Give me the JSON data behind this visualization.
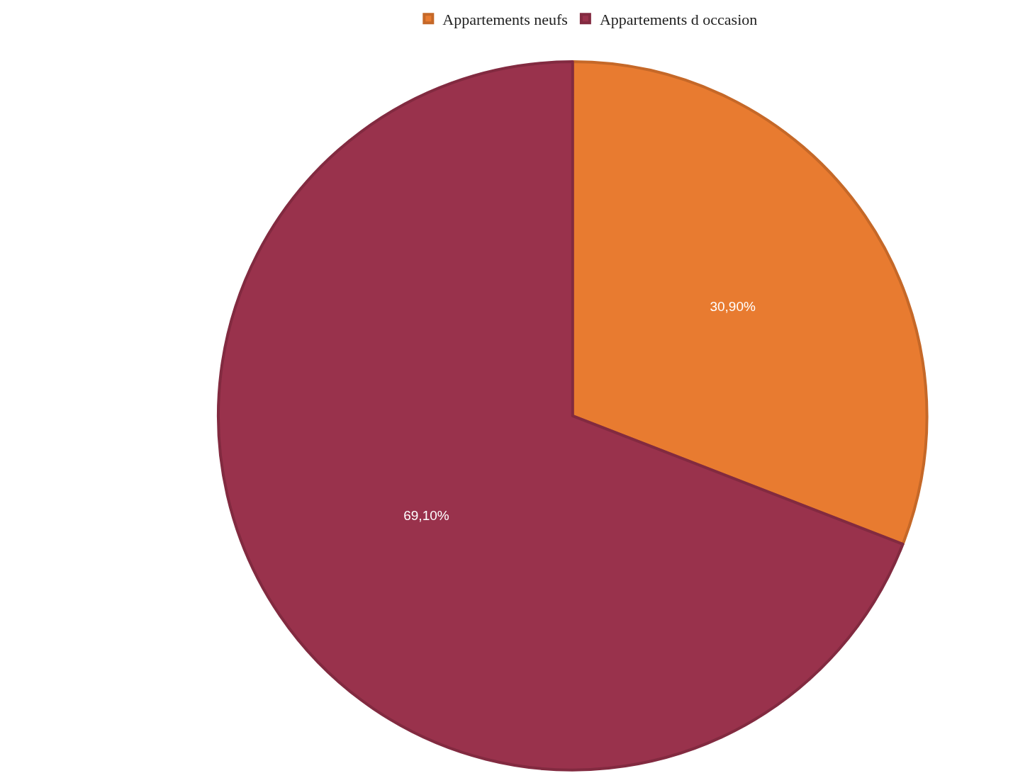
{
  "chart_data": {
    "type": "pie",
    "categories": [
      "Appartements neufs",
      "Appartements d occasion"
    ],
    "values": [
      30.9,
      69.1
    ],
    "colors": [
      "#e87b30",
      "#99324c"
    ],
    "value_labels": [
      "30,90%",
      "69,10%"
    ],
    "legend": "top"
  }
}
